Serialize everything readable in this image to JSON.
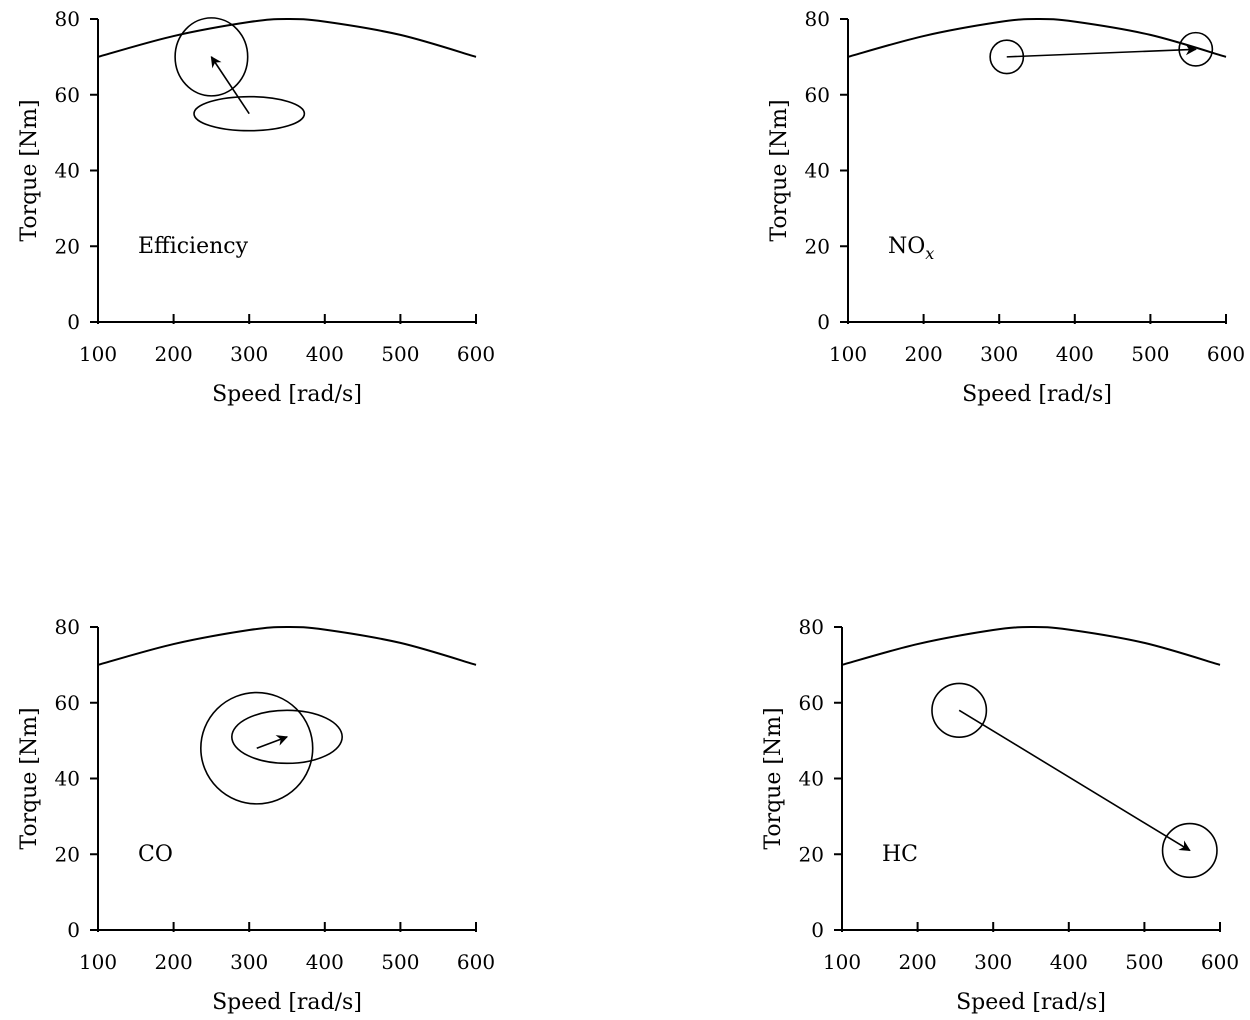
{
  "chart_data": [
    {
      "type": "line",
      "label": "Efficiency",
      "xlabel": "Speed [rad/s]",
      "ylabel": "Torque [Nm]",
      "xlim": [
        100,
        600
      ],
      "ylim": [
        0,
        80
      ],
      "xticks": [
        100,
        200,
        300,
        400,
        500,
        600
      ],
      "yticks": [
        0,
        20,
        40,
        60,
        80
      ],
      "boundary": {
        "x": [
          100,
          200,
          300,
          350,
          400,
          500,
          600
        ],
        "y": [
          70,
          75.5,
          79.2,
          80,
          79.3,
          75.8,
          70
        ]
      },
      "regions": [
        {
          "cx": 300,
          "cy": 55,
          "rx": 73,
          "ry": 4.5
        },
        {
          "cx": 250,
          "cy": 70,
          "rx": 48,
          "ry": 10.3
        }
      ],
      "arrow": {
        "from": [
          300,
          55
        ],
        "to": [
          250,
          70
        ]
      }
    },
    {
      "type": "line",
      "label": "NO",
      "label_sub": "x",
      "xlabel": "Speed [rad/s]",
      "ylabel": "Torque [Nm]",
      "xlim": [
        100,
        600
      ],
      "ylim": [
        0,
        80
      ],
      "xticks": [
        100,
        200,
        300,
        400,
        500,
        600
      ],
      "yticks": [
        0,
        20,
        40,
        60,
        80
      ],
      "boundary": {
        "x": [
          100,
          200,
          300,
          350,
          400,
          500,
          600
        ],
        "y": [
          70,
          75.5,
          79.2,
          80,
          79.3,
          75.8,
          70
        ]
      },
      "regions": [
        {
          "cx": 310,
          "cy": 70,
          "rx": 22,
          "ry": 4.4
        },
        {
          "cx": 560,
          "cy": 72,
          "rx": 22,
          "ry": 4.4
        }
      ],
      "arrow": {
        "from": [
          310,
          70
        ],
        "to": [
          560,
          72
        ]
      }
    },
    {
      "type": "line",
      "label": "CO",
      "xlabel": "Speed [rad/s]",
      "ylabel": "Torque [Nm]",
      "xlim": [
        100,
        600
      ],
      "ylim": [
        0,
        80
      ],
      "xticks": [
        100,
        200,
        300,
        400,
        500,
        600
      ],
      "yticks": [
        0,
        20,
        40,
        60,
        80
      ],
      "boundary": {
        "x": [
          100,
          200,
          300,
          350,
          400,
          500,
          600
        ],
        "y": [
          70,
          75.5,
          79.2,
          80,
          79.3,
          75.8,
          70
        ]
      },
      "regions": [
        {
          "cx": 350,
          "cy": 51,
          "rx": 73,
          "ry": 7
        },
        {
          "cx": 310,
          "cy": 48,
          "rx": 74,
          "ry": 14.7
        }
      ],
      "arrow": {
        "from": [
          310,
          48
        ],
        "to": [
          350,
          51
        ]
      }
    },
    {
      "type": "line",
      "label": "HC",
      "xlabel": "Speed [rad/s]",
      "ylabel": "Torque [Nm]",
      "xlim": [
        100,
        600
      ],
      "ylim": [
        0,
        80
      ],
      "xticks": [
        100,
        200,
        300,
        400,
        500,
        600
      ],
      "yticks": [
        0,
        20,
        40,
        60,
        80
      ],
      "boundary": {
        "x": [
          100,
          200,
          300,
          350,
          400,
          500,
          600
        ],
        "y": [
          70,
          75.5,
          79.2,
          80,
          79.3,
          75.8,
          70
        ]
      },
      "regions": [
        {
          "cx": 255,
          "cy": 58,
          "rx": 36,
          "ry": 7.1
        },
        {
          "cx": 560,
          "cy": 21,
          "rx": 36,
          "ry": 7.1
        }
      ],
      "arrow": {
        "from": [
          255,
          58
        ],
        "to": [
          560,
          21
        ]
      }
    }
  ]
}
